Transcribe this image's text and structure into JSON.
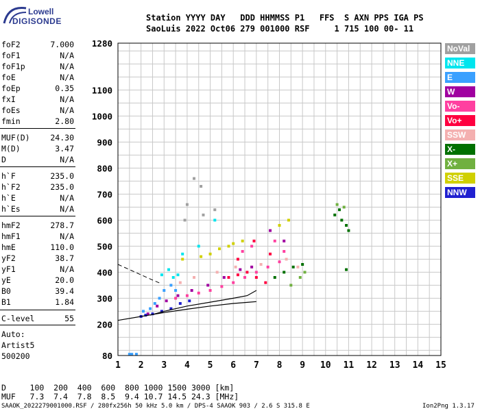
{
  "logo": {
    "line1": "Lowell",
    "line2": "DIGISONDE"
  },
  "header": {
    "line1": "Station YYYY DAY   DDD HHMMSS P1   FFS  S AXN PPS IGA PS",
    "line2": "SaoLuis 2022 Oct06 279 001000 RSF     1 715 100 00- 11"
  },
  "params": [
    {
      "name": "foF2",
      "value": "7.000"
    },
    {
      "name": "foF1",
      "value": "N/A"
    },
    {
      "name": "foF1p",
      "value": "N/A"
    },
    {
      "name": "foE",
      "value": "N/A"
    },
    {
      "name": "foEp",
      "value": "0.35"
    },
    {
      "name": "fxI",
      "value": "N/A"
    },
    {
      "name": "foEs",
      "value": "N/A"
    },
    {
      "name": "fmin",
      "value": "2.80"
    },
    {
      "name": "MUF(D)",
      "value": "24.30"
    },
    {
      "name": "M(D)",
      "value": "3.47"
    },
    {
      "name": "D",
      "value": "N/A"
    },
    {
      "name": "h`F",
      "value": "235.0"
    },
    {
      "name": "h`F2",
      "value": "235.0"
    },
    {
      "name": "h`E",
      "value": "N/A"
    },
    {
      "name": "h`Es",
      "value": "N/A"
    },
    {
      "name": "hmF2",
      "value": "278.7"
    },
    {
      "name": "hmF1",
      "value": "N/A"
    },
    {
      "name": "hmE",
      "value": "110.0"
    },
    {
      "name": "yF2",
      "value": "38.7"
    },
    {
      "name": "yF1",
      "value": "N/A"
    },
    {
      "name": "yE",
      "value": "20.0"
    },
    {
      "name": "B0",
      "value": "39.4"
    },
    {
      "name": "B1",
      "value": "1.84"
    },
    {
      "name": "C-level",
      "value": "55"
    }
  ],
  "auto_notes": [
    "Auto:",
    "Artist5",
    "500200"
  ],
  "legend": [
    {
      "label": "NoVal",
      "color": "#a0a0a0"
    },
    {
      "label": "NNE",
      "color": "#00e5ee"
    },
    {
      "label": "E",
      "color": "#3aa0ff"
    },
    {
      "label": "W",
      "color": "#a000a0"
    },
    {
      "label": "Vo-",
      "color": "#ff40a0"
    },
    {
      "label": "Vo+",
      "color": "#ff0040"
    },
    {
      "label": "SSW",
      "color": "#f4b0b0"
    },
    {
      "label": "X-",
      "color": "#007000"
    },
    {
      "label": "X+",
      "color": "#70b040"
    },
    {
      "label": "SSE",
      "color": "#d0d000"
    },
    {
      "label": "NNW",
      "color": "#2020d0"
    }
  ],
  "muf_table": {
    "d_line": "D     100  200  400  600  800 1000 1500 3000 [km]",
    "muf_line": "MUF   7.3  7.4  7.8  8.5  9.4 10.7 14.5 24.3 [MHz]"
  },
  "footer": {
    "left": "SAAOK_2022279001000.RSF / 280fx256h 50 kHz 5.0 km / DPS-4 SAAOK 903 / 2.6 S 315.8 E",
    "right": "Ion2Png 1.3.17"
  },
  "chart_data": {
    "type": "scatter",
    "title": "",
    "xlabel": "",
    "ylabel": "",
    "xlim": [
      1,
      15
    ],
    "ylim": [
      80,
      1280
    ],
    "x_ticks": [
      1,
      2,
      3,
      4,
      5,
      6,
      7,
      8,
      9,
      10,
      11,
      12,
      13,
      14,
      15
    ],
    "y_ticks": [
      80,
      200,
      300,
      400,
      500,
      600,
      700,
      800,
      900,
      1000,
      1100,
      1280
    ],
    "grid": true,
    "series": [
      {
        "name": "NoVal",
        "points": [
          [
            4.3,
            760
          ],
          [
            4.6,
            730
          ],
          [
            4.0,
            660
          ],
          [
            5.2,
            640
          ],
          [
            3.9,
            600
          ],
          [
            4.7,
            620
          ]
        ]
      },
      {
        "name": "NNE",
        "points": [
          [
            3.2,
            410
          ],
          [
            3.4,
            380
          ],
          [
            3.6,
            390
          ],
          [
            2.9,
            390
          ],
          [
            5.2,
            600
          ],
          [
            4.5,
            500
          ],
          [
            3.8,
            470
          ]
        ]
      },
      {
        "name": "E",
        "points": [
          [
            2.1,
            250
          ],
          [
            2.4,
            260
          ],
          [
            2.6,
            280
          ],
          [
            2.8,
            300
          ],
          [
            3.0,
            330
          ],
          [
            3.3,
            350
          ],
          [
            3.5,
            330
          ],
          [
            1.5,
            85
          ],
          [
            1.6,
            85
          ],
          [
            1.8,
            85
          ]
        ]
      },
      {
        "name": "W",
        "points": [
          [
            2.3,
            240
          ],
          [
            2.7,
            270
          ],
          [
            3.1,
            290
          ],
          [
            3.6,
            310
          ],
          [
            4.2,
            330
          ],
          [
            4.9,
            350
          ],
          [
            5.6,
            380
          ],
          [
            6.3,
            410
          ],
          [
            6.8,
            420
          ],
          [
            7.6,
            560
          ],
          [
            8.2,
            520
          ]
        ]
      },
      {
        "name": "Vo-",
        "points": [
          [
            3.5,
            300
          ],
          [
            4.0,
            310
          ],
          [
            4.5,
            320
          ],
          [
            5.0,
            330
          ],
          [
            5.5,
            345
          ],
          [
            6.0,
            360
          ],
          [
            6.5,
            380
          ],
          [
            7.0,
            400
          ],
          [
            7.5,
            420
          ],
          [
            8.0,
            440
          ],
          [
            6.4,
            480
          ],
          [
            6.8,
            500
          ],
          [
            7.8,
            520
          ],
          [
            8.2,
            480
          ]
        ]
      },
      {
        "name": "Vo+",
        "points": [
          [
            5.8,
            380
          ],
          [
            6.2,
            390
          ],
          [
            6.6,
            400
          ],
          [
            7.0,
            380
          ],
          [
            7.4,
            360
          ],
          [
            6.9,
            520
          ],
          [
            6.2,
            450
          ],
          [
            7.6,
            470
          ]
        ]
      },
      {
        "name": "SSW",
        "points": [
          [
            3.7,
            360
          ],
          [
            4.3,
            380
          ],
          [
            5.3,
            400
          ],
          [
            6.1,
            420
          ],
          [
            7.2,
            430
          ],
          [
            8.3,
            450
          ],
          [
            8.8,
            420
          ]
        ]
      },
      {
        "name": "X-",
        "points": [
          [
            7.8,
            380
          ],
          [
            8.2,
            400
          ],
          [
            8.6,
            420
          ],
          [
            9.0,
            430
          ],
          [
            10.4,
            620
          ],
          [
            10.7,
            600
          ],
          [
            10.9,
            580
          ],
          [
            11.0,
            560
          ],
          [
            10.9,
            410
          ],
          [
            10.6,
            640
          ]
        ]
      },
      {
        "name": "X+",
        "points": [
          [
            8.5,
            350
          ],
          [
            8.9,
            380
          ],
          [
            9.1,
            400
          ],
          [
            10.5,
            660
          ],
          [
            10.8,
            650
          ]
        ]
      },
      {
        "name": "SSE",
        "points": [
          [
            4.6,
            460
          ],
          [
            5.0,
            470
          ],
          [
            5.4,
            490
          ],
          [
            5.8,
            500
          ],
          [
            6.0,
            510
          ],
          [
            6.4,
            520
          ],
          [
            8.0,
            580
          ],
          [
            8.4,
            600
          ],
          [
            3.8,
            450
          ]
        ]
      },
      {
        "name": "NNW",
        "points": [
          [
            2.0,
            230
          ],
          [
            2.2,
            235
          ],
          [
            2.5,
            240
          ],
          [
            2.9,
            250
          ],
          [
            3.3,
            260
          ],
          [
            3.7,
            280
          ],
          [
            4.1,
            290
          ]
        ]
      }
    ],
    "profile_curve": [
      [
        1.0,
        215
      ],
      [
        2.0,
        230
      ],
      [
        3.0,
        245
      ],
      [
        4.0,
        258
      ],
      [
        5.0,
        270
      ],
      [
        6.0,
        280
      ],
      [
        6.7,
        285
      ],
      [
        7.0,
        287
      ]
    ],
    "trace_curve": [
      [
        2.4,
        235
      ],
      [
        3.0,
        250
      ],
      [
        4.0,
        270
      ],
      [
        5.0,
        285
      ],
      [
        6.0,
        300
      ],
      [
        6.6,
        310
      ],
      [
        7.0,
        330
      ]
    ],
    "dashed_curve": [
      [
        1.0,
        430
      ],
      [
        1.5,
        410
      ],
      [
        2.0,
        390
      ],
      [
        2.5,
        370
      ],
      [
        2.9,
        355
      ]
    ]
  }
}
